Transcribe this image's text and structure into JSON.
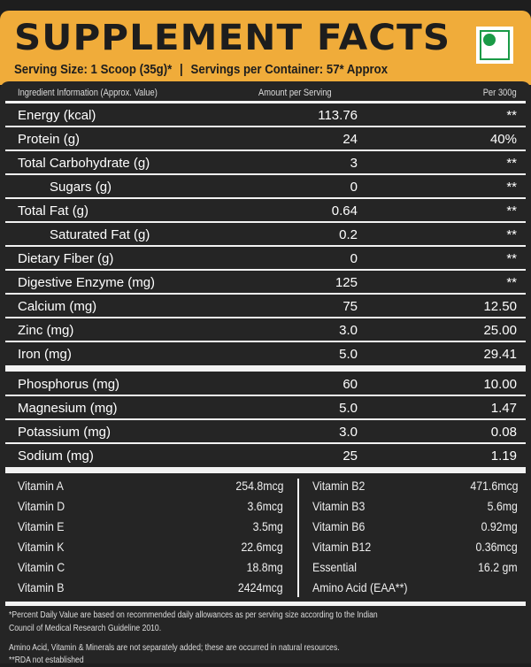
{
  "title": "SUPPLEMENT FACTS",
  "serving_size": "Serving Size: 1 Scoop (35g)*",
  "separator": "|",
  "servings_per_container": "Servings per Container: 57* Approx",
  "veg_mark_color": "#1a9a46",
  "accent_color": "#f0ac3a",
  "columns": {
    "ingredient": "Ingredient Information (Approx. Value)",
    "amount": "Amount per Serving",
    "per": "Per 300g"
  },
  "rows": [
    {
      "name": "Energy (kcal)",
      "amount": "113.76",
      "per": "**"
    },
    {
      "name": "Protein (g)",
      "amount": "24",
      "per": "40%"
    },
    {
      "name": "Total Carbohydrate (g)",
      "amount": "3",
      "per": "**"
    },
    {
      "name": "Sugars (g)",
      "amount": "0",
      "per": "**"
    },
    {
      "name": "Total Fat (g)",
      "amount": "0.64",
      "per": "**"
    },
    {
      "name": "Saturated Fat (g)",
      "amount": "0.2",
      "per": "**"
    },
    {
      "name": "Dietary Fiber (g)",
      "amount": "0",
      "per": "**"
    },
    {
      "name": "Digestive Enzyme (mg)",
      "amount": "125",
      "per": "**"
    },
    {
      "name": "Calcium (mg)",
      "amount": "75",
      "per": "12.50"
    },
    {
      "name": "Zinc (mg)",
      "amount": "3.0",
      "per": "25.00"
    },
    {
      "name": "Iron (mg)",
      "amount": "5.0",
      "per": "29.41"
    }
  ],
  "minerals": [
    {
      "name": "Phosphorus (mg)",
      "amount": "60",
      "per": "10.00"
    },
    {
      "name": "Magnesium (mg)",
      "amount": "5.0",
      "per": "1.47"
    },
    {
      "name": "Potassium (mg)",
      "amount": "3.0",
      "per": "0.08"
    },
    {
      "name": "Sodium (mg)",
      "amount": "25",
      "per": "1.19"
    }
  ],
  "vitamins_left": [
    {
      "name": "Vitamin A",
      "value": "254.8mcg"
    },
    {
      "name": "Vitamin D",
      "value": "3.6mcg"
    },
    {
      "name": "Vitamin E",
      "value": "3.5mg"
    },
    {
      "name": "Vitamin K",
      "value": "22.6mcg"
    },
    {
      "name": "Vitamin C",
      "value": "18.8mg"
    },
    {
      "name": "Vitamin B",
      "value": "2424mcg"
    }
  ],
  "vitamins_right": [
    {
      "name": "Vitamin  B2",
      "value": "471.6mcg"
    },
    {
      "name": "Vitamin B3",
      "value": "5.6mg"
    },
    {
      "name": "Vitamin B6",
      "value": "0.92mg"
    },
    {
      "name": "Vitamin B12",
      "value": "0.36mcg"
    },
    {
      "name": "Essential",
      "value": "16.2 gm"
    },
    {
      "name": "Amino Acid (EAA**)",
      "value": ""
    }
  ],
  "footnotes": [
    "*Percent Daily Value are based on recommended daily allowances as per serving size according to the Indian",
    "Council of Medical Research Guideline 2010.",
    "Amino Acid, Vitamin & Minerals are not separately added; these are occurred in natural resources.",
    "**RDA not established"
  ]
}
